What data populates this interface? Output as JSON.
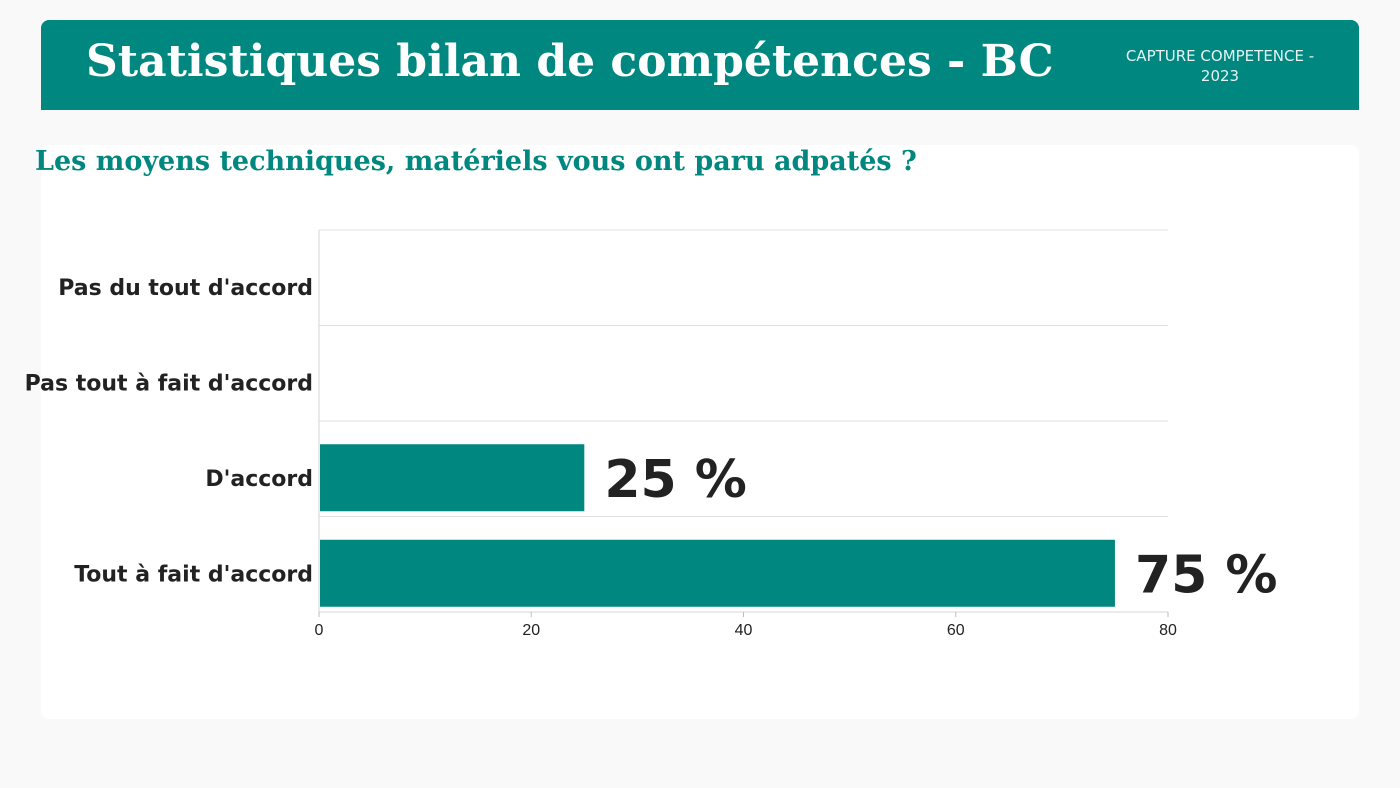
{
  "header": {
    "title": "Statistiques bilan de compétences - BC",
    "badge_line1": "CAPTURE COMPETENCE -",
    "badge_line2": "2023"
  },
  "question": "Les moyens techniques, matériels vous ont paru adpatés ?",
  "colors": {
    "accent": "#008780",
    "bar": "#008780",
    "text": "#222222",
    "grid": "#e0e0e0"
  },
  "chart_data": {
    "type": "bar",
    "orientation": "horizontal",
    "categories": [
      "Pas du tout d'accord",
      "Pas tout à fait d'accord",
      "D'accord",
      "Tout à fait d'accord"
    ],
    "values": [
      0,
      0,
      25,
      75
    ],
    "data_labels": [
      "",
      "",
      "25 %",
      "75 %"
    ],
    "xlim": [
      0,
      80
    ],
    "xticks": [
      0,
      20,
      40,
      60,
      80
    ],
    "title": "",
    "xlabel": "",
    "ylabel": "",
    "grid": true,
    "legend": "none"
  }
}
